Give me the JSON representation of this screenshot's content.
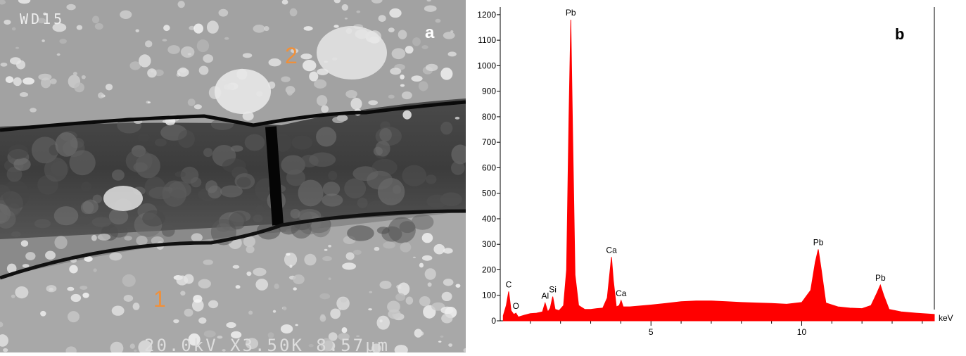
{
  "panel_a": {
    "detector": "WD15",
    "panel_label": "a",
    "point_labels": [
      "2",
      "1"
    ],
    "footer": "20.0kV X3.50K 8.57μm"
  },
  "chart_data": {
    "type": "area",
    "panel_label": "b",
    "x_label": "keV",
    "color": "#ff0000",
    "x": [
      0.1,
      0.2,
      0.28,
      0.36,
      0.45,
      0.52,
      0.6,
      0.8,
      1.0,
      1.2,
      1.4,
      1.49,
      1.58,
      1.66,
      1.74,
      1.82,
      1.95,
      2.1,
      2.2,
      2.28,
      2.34,
      2.4,
      2.48,
      2.6,
      2.8,
      3.0,
      3.2,
      3.4,
      3.55,
      3.63,
      3.69,
      3.75,
      3.85,
      3.95,
      4.01,
      4.08,
      4.3,
      4.6,
      5.0,
      5.5,
      6.0,
      6.5,
      7.0,
      7.5,
      8.0,
      8.5,
      9.0,
      9.5,
      10.0,
      10.3,
      10.45,
      10.55,
      10.65,
      10.8,
      11.2,
      11.6,
      12.0,
      12.3,
      12.5,
      12.61,
      12.72,
      12.9,
      13.3,
      13.8,
      14.4
    ],
    "values": [
      20,
      60,
      115,
      40,
      25,
      30,
      15,
      22,
      28,
      30,
      35,
      70,
      35,
      50,
      95,
      45,
      40,
      60,
      200,
      800,
      1180,
      750,
      180,
      60,
      45,
      45,
      48,
      50,
      90,
      180,
      250,
      160,
      55,
      60,
      80,
      55,
      55,
      58,
      62,
      68,
      75,
      78,
      78,
      75,
      72,
      70,
      68,
      65,
      72,
      120,
      230,
      280,
      200,
      70,
      55,
      50,
      48,
      60,
      110,
      140,
      100,
      45,
      35,
      30,
      25
    ],
    "peak_labels": [
      {
        "label": "C",
        "x": 0.28,
        "y": 115
      },
      {
        "label": "O",
        "x": 0.52,
        "y": 30
      },
      {
        "label": "Al",
        "x": 1.49,
        "y": 70
      },
      {
        "label": "Si",
        "x": 1.74,
        "y": 95
      },
      {
        "label": "Pb",
        "x": 2.34,
        "y": 1180
      },
      {
        "label": "Ca",
        "x": 3.69,
        "y": 250
      },
      {
        "label": "Ca",
        "x": 4.01,
        "y": 80
      },
      {
        "label": "Pb",
        "x": 10.55,
        "y": 280
      },
      {
        "label": "Pb",
        "x": 12.61,
        "y": 140
      }
    ],
    "xlim": [
      0,
      14.4
    ],
    "ylim": [
      0,
      1230
    ],
    "xticks": [
      5,
      10
    ],
    "xminorticks": [
      1,
      2,
      3,
      4,
      6,
      7,
      8,
      9,
      11,
      12,
      13,
      14
    ],
    "yticks": [
      0,
      100,
      200,
      300,
      400,
      500,
      600,
      700,
      800,
      900,
      1000,
      1100,
      1200
    ]
  }
}
